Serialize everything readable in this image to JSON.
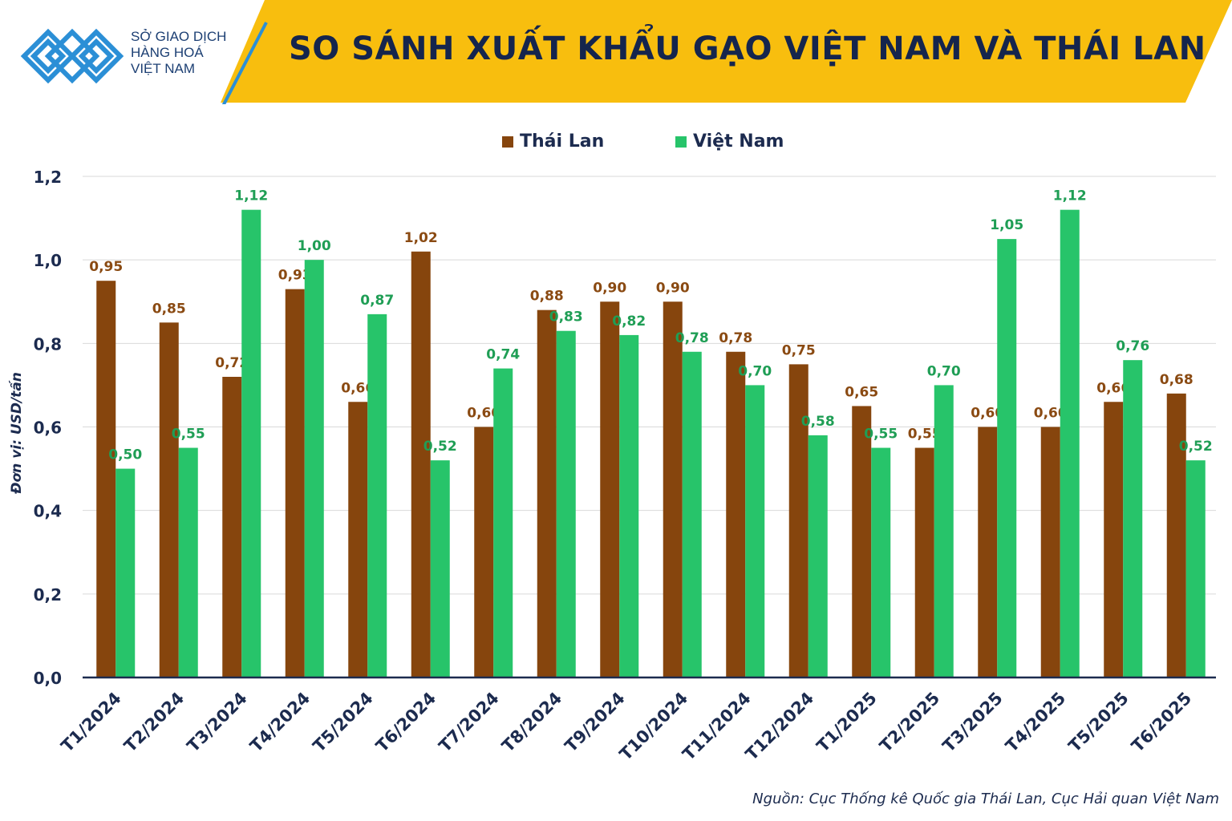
{
  "header": {
    "logo_lines": [
      "SỞ GIAO DỊCH",
      "HÀNG HOÁ",
      "VIỆT NAM"
    ],
    "title": "SO SÁNH XUẤT KHẨU GẠO VIỆT NAM VÀ THÁI LAN"
  },
  "colors": {
    "header_band": "#f8be0e",
    "thailand": "#86450d",
    "vietnam": "#27c46a",
    "thailand_label": "#8a4a12",
    "vietnam_label": "#1f9e55",
    "axis_text": "#1c2b4f",
    "logo_blue": "#2b8fd6"
  },
  "chart_data": {
    "type": "bar",
    "title": "SO SÁNH XUẤT KHẨU GẠO VIỆT NAM VÀ THÁI LAN",
    "ylabel": "Đơn vị: USD/tấn",
    "xlabel": "",
    "ylim": [
      0,
      1.2
    ],
    "yticks": [
      "0,0",
      "0,2",
      "0,4",
      "0,6",
      "0,8",
      "1,0",
      "1,2"
    ],
    "grid": true,
    "legend_position": "top-center",
    "categories": [
      "T1/2024",
      "T2/2024",
      "T3/2024",
      "T4/2024",
      "T5/2024",
      "T6/2024",
      "T7/2024",
      "T8/2024",
      "T9/2024",
      "T10/2024",
      "T11/2024",
      "T12/2024",
      "T1/2025",
      "T2/2025",
      "T3/2025",
      "T4/2025",
      "T5/2025",
      "T6/2025"
    ],
    "series": [
      {
        "name": "Thái Lan",
        "values": [
          0.95,
          0.85,
          0.72,
          0.93,
          0.66,
          1.02,
          0.6,
          0.88,
          0.9,
          0.9,
          0.78,
          0.75,
          0.65,
          0.55,
          0.6,
          0.6,
          0.66,
          0.68
        ],
        "labels": [
          "0,95",
          "0,85",
          "0,72",
          "0,93",
          "0,66",
          "1,02",
          "0,60",
          "0,88",
          "0,90",
          "0,90",
          "0,78",
          "0,75",
          "0,65",
          "0,55",
          "0,60",
          "0,60",
          "0,66",
          "0,68"
        ]
      },
      {
        "name": "Việt Nam",
        "values": [
          0.5,
          0.55,
          1.12,
          1.0,
          0.87,
          0.52,
          0.74,
          0.83,
          0.82,
          0.78,
          0.7,
          0.58,
          0.55,
          0.7,
          1.05,
          1.12,
          0.76,
          0.52
        ],
        "labels": [
          "0,50",
          "0,55",
          "1,12",
          "1,00",
          "0,87",
          "0,52",
          "0,74",
          "0,83",
          "0,82",
          "0,78",
          "0,70",
          "0,58",
          "0,55",
          "0,70",
          "1,05",
          "1,12",
          "0,76",
          "0,52"
        ]
      }
    ]
  },
  "source": "Nguồn: Cục Thống kê Quốc gia Thái Lan, Cục Hải quan Việt Nam"
}
